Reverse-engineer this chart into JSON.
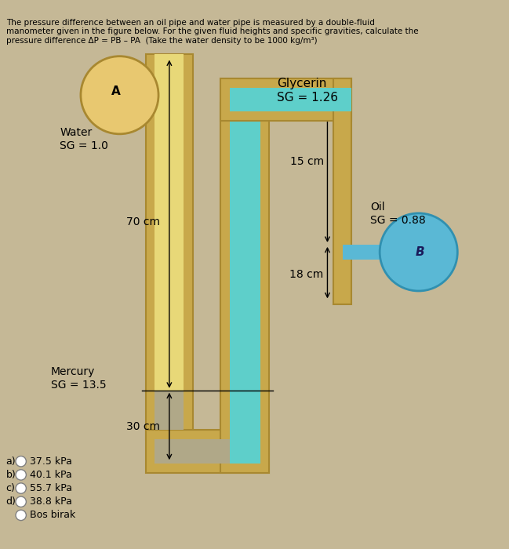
{
  "bg_color": "#c5b896",
  "pipe_wall_color": "#c8a84b",
  "pipe_wall_edge": "#a88830",
  "water_fill_color": "#e8d878",
  "glycerin_color": "#5ecfca",
  "mercury_color": "#b0a888",
  "oil_color": "#5ab8d5",
  "water_circle_color": "#e8c870",
  "water_circle_edge": "#a88830",
  "oil_circle_color": "#5ab8d5",
  "oil_circle_edge": "#3090b0",
  "title_lines": [
    "The pressure difference between an oil pipe and water pipe is measured by a double-fluid",
    "manometer given in the figure below. For the given fluid heights and specific gravities, calculate the",
    "pressure difference ΔP = PB – PA  (Take the water density to be 1000 kg/m³)"
  ],
  "answer_options": [
    [
      "a)",
      "37.5 kPa"
    ],
    [
      "b)",
      "40.1 kPa"
    ],
    [
      "c)",
      "55.7 kPa"
    ],
    [
      "d)",
      "38.8 kPa"
    ],
    [
      "",
      "Bos birak"
    ]
  ]
}
